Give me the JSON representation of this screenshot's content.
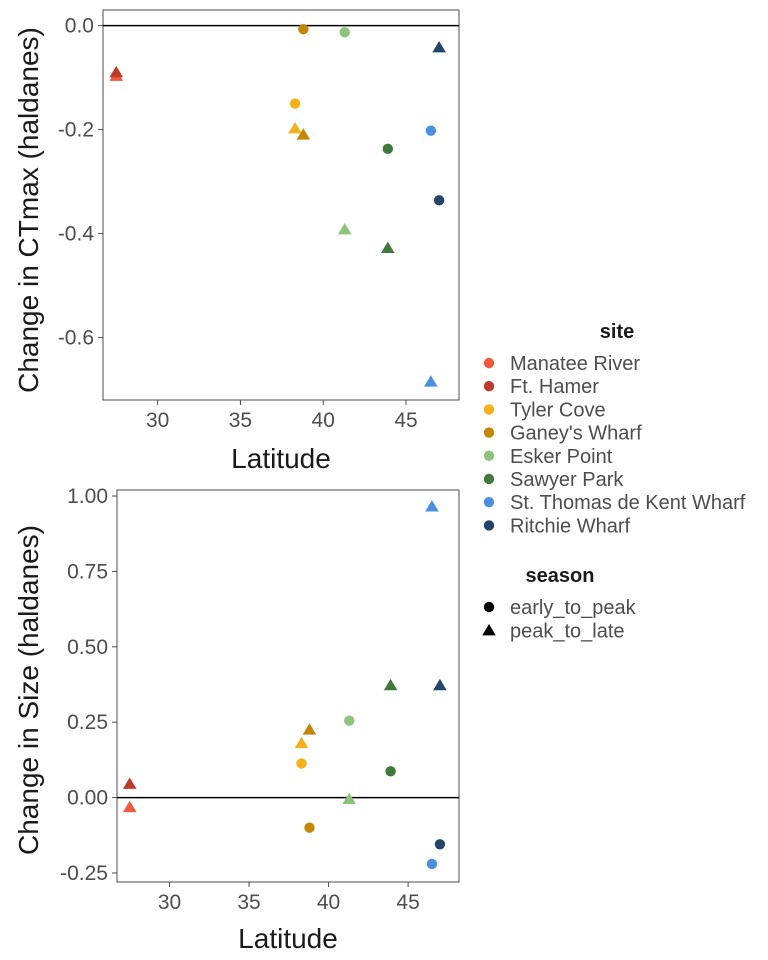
{
  "colors": {
    "Manatee River": "#f05a3c",
    "Ft. Hamer": "#c0392b",
    "Tyler Cove": "#f5b01a",
    "Ganey's Wharf": "#c48608",
    "Esker Point": "#8cc47c",
    "Sawyer Park": "#3f7a3a",
    "St. Thomas de Kent Wharf": "#4a90e2",
    "Ritchie Wharf": "#24456b"
  },
  "legend": {
    "site_title": "site",
    "sites": [
      "Manatee River",
      "Ft. Hamer",
      "Tyler Cove",
      "Ganey's Wharf",
      "Esker Point",
      "Sawyer Park",
      "St. Thomas de Kent Wharf",
      "Ritchie Wharf"
    ],
    "season_title": "season",
    "seasons": [
      {
        "label": "early_to_peak",
        "shape": "circle"
      },
      {
        "label": "peak_to_late",
        "shape": "triangle"
      }
    ]
  },
  "chart_data": [
    {
      "type": "scatter",
      "xlabel": "Latitude",
      "ylabel": "Change in CTmax (haldanes)",
      "xlim": [
        26.7,
        48.2
      ],
      "ylim": [
        -0.72,
        0.03
      ],
      "xticks": [
        30,
        35,
        40,
        45
      ],
      "yticks": [
        -0.6,
        -0.4,
        -0.2,
        0.0
      ],
      "ytick_labels": [
        "-0.6",
        "-0.4",
        "-0.2",
        "0.0"
      ],
      "hline": 0,
      "grid": false,
      "points": [
        {
          "site": "Manatee River",
          "season": "peak_to_late",
          "x": 27.5,
          "y": -0.097
        },
        {
          "site": "Ft. Hamer",
          "season": "peak_to_late",
          "x": 27.5,
          "y": -0.09
        },
        {
          "site": "Tyler Cove",
          "season": "early_to_peak",
          "x": 38.3,
          "y": -0.15
        },
        {
          "site": "Tyler Cove",
          "season": "peak_to_late",
          "x": 38.3,
          "y": -0.198
        },
        {
          "site": "Ganey's Wharf",
          "season": "early_to_peak",
          "x": 38.8,
          "y": -0.007
        },
        {
          "site": "Ganey's Wharf",
          "season": "peak_to_late",
          "x": 38.8,
          "y": -0.21
        },
        {
          "site": "Esker Point",
          "season": "early_to_peak",
          "x": 41.3,
          "y": -0.013
        },
        {
          "site": "Esker Point",
          "season": "peak_to_late",
          "x": 41.3,
          "y": -0.392
        },
        {
          "site": "Sawyer Park",
          "season": "early_to_peak",
          "x": 43.9,
          "y": -0.237
        },
        {
          "site": "Sawyer Park",
          "season": "peak_to_late",
          "x": 43.9,
          "y": -0.428
        },
        {
          "site": "St. Thomas de Kent Wharf",
          "season": "early_to_peak",
          "x": 46.5,
          "y": -0.202
        },
        {
          "site": "St. Thomas de Kent Wharf",
          "season": "peak_to_late",
          "x": 46.5,
          "y": -0.685
        },
        {
          "site": "Ritchie Wharf",
          "season": "early_to_peak",
          "x": 47.0,
          "y": -0.336
        },
        {
          "site": "Ritchie Wharf",
          "season": "peak_to_late",
          "x": 47.0,
          "y": -0.042
        }
      ]
    },
    {
      "type": "scatter",
      "xlabel": "Latitude",
      "ylabel": "Change in Size (haldanes)",
      "xlim": [
        26.7,
        48.2
      ],
      "ylim": [
        -0.28,
        1.02
      ],
      "xticks": [
        30,
        35,
        40,
        45
      ],
      "yticks": [
        -0.25,
        0.0,
        0.25,
        0.5,
        0.75,
        1.0
      ],
      "ytick_labels": [
        "-0.25",
        "0.00",
        "0.25",
        "0.50",
        "0.75",
        "1.00"
      ],
      "hline": 0,
      "grid": false,
      "points": [
        {
          "site": "Manatee River",
          "season": "peak_to_late",
          "x": 27.5,
          "y": -0.032
        },
        {
          "site": "Ft. Hamer",
          "season": "peak_to_late",
          "x": 27.5,
          "y": 0.045
        },
        {
          "site": "Tyler Cove",
          "season": "early_to_peak",
          "x": 38.3,
          "y": 0.113
        },
        {
          "site": "Tyler Cove",
          "season": "peak_to_late",
          "x": 38.3,
          "y": 0.18
        },
        {
          "site": "Ganey's Wharf",
          "season": "early_to_peak",
          "x": 38.8,
          "y": -0.1
        },
        {
          "site": "Ganey's Wharf",
          "season": "peak_to_late",
          "x": 38.8,
          "y": 0.225
        },
        {
          "site": "Esker Point",
          "season": "early_to_peak",
          "x": 41.3,
          "y": 0.255
        },
        {
          "site": "Esker Point",
          "season": "peak_to_late",
          "x": 41.3,
          "y": -0.005
        },
        {
          "site": "Sawyer Park",
          "season": "early_to_peak",
          "x": 43.9,
          "y": 0.087
        },
        {
          "site": "Sawyer Park",
          "season": "peak_to_late",
          "x": 43.9,
          "y": 0.372
        },
        {
          "site": "St. Thomas de Kent Wharf",
          "season": "early_to_peak",
          "x": 46.5,
          "y": -0.22
        },
        {
          "site": "St. Thomas de Kent Wharf",
          "season": "peak_to_late",
          "x": 46.5,
          "y": 0.965
        },
        {
          "site": "Ritchie Wharf",
          "season": "early_to_peak",
          "x": 47.0,
          "y": -0.155
        },
        {
          "site": "Ritchie Wharf",
          "season": "peak_to_late",
          "x": 47.0,
          "y": 0.372
        }
      ]
    }
  ]
}
